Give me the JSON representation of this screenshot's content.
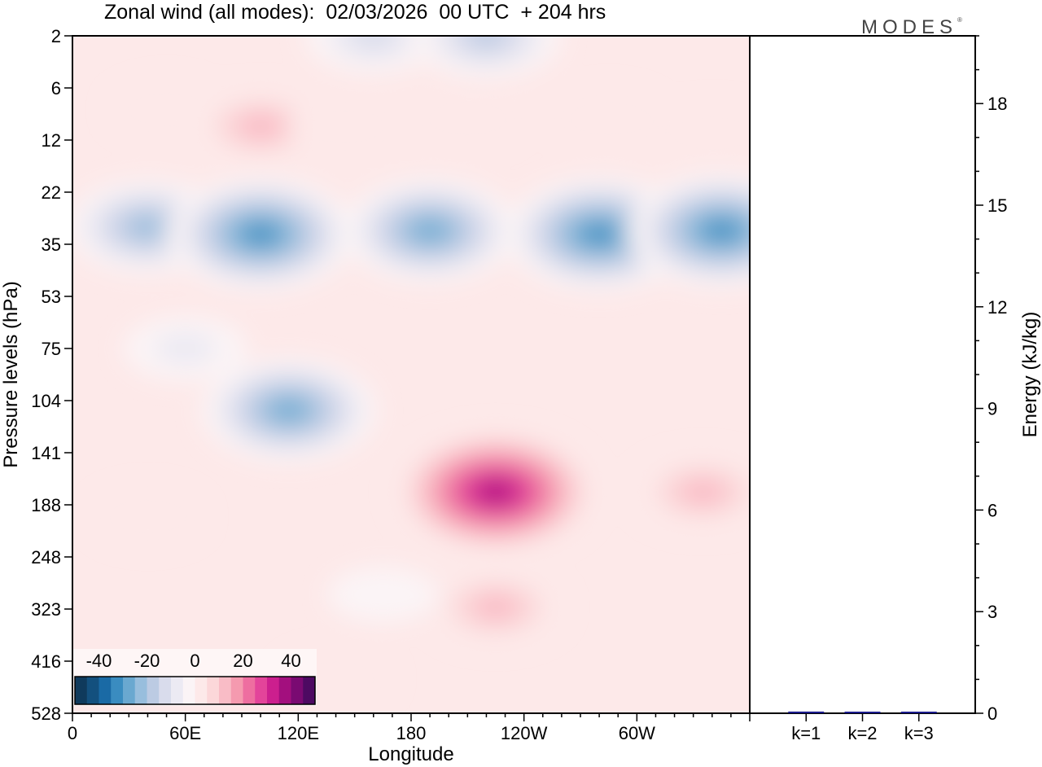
{
  "title": "Zonal wind (all modes):  02/03/2026  00 UTC  + 204 hrs",
  "brand": "MODES",
  "brand_mark": "®",
  "chart_data": [
    {
      "type": "heatmap",
      "title": "Zonal wind (all modes):  02/03/2026  00 UTC  + 204 hrs",
      "xlabel": "Longitude",
      "ylabel": "Pressure levels (hPa)",
      "x_ticks": [
        "0",
        "60E",
        "120E",
        "180",
        "120W",
        "60W"
      ],
      "x_tick_degrees": [
        0,
        60,
        120,
        180,
        240,
        300
      ],
      "x_range": [
        0,
        360
      ],
      "y_ticks": [
        "2",
        "6",
        "12",
        "22",
        "35",
        "53",
        "75",
        "104",
        "141",
        "188",
        "248",
        "323",
        "416",
        "528"
      ],
      "colorbar": {
        "labels": [
          "-40",
          "-20",
          "0",
          "20",
          "40"
        ],
        "levels": [
          -50,
          -45,
          -40,
          -35,
          -30,
          -25,
          -20,
          -15,
          -10,
          -5,
          0,
          5,
          10,
          15,
          20,
          25,
          30,
          35,
          40,
          45,
          50
        ],
        "colors": [
          "#0f3a5c",
          "#13507e",
          "#1a6aa5",
          "#3a8cc0",
          "#6aa8d0",
          "#98bedd",
          "#bccbe3",
          "#d9dcec",
          "#eceaf3",
          "#fbf4f6",
          "#fde9e9",
          "#fcd7d9",
          "#f9bcc6",
          "#f59aaf",
          "#ee6ea0",
          "#e3449a",
          "#cc1f8e",
          "#a30f7e",
          "#7a0a72",
          "#4d0a62"
        ]
      },
      "features": [
        {
          "lon": 50,
          "level": 8,
          "u": 5
        },
        {
          "lon": 100,
          "level": 10,
          "u": 15
        },
        {
          "lon": 145,
          "level": 10,
          "u": 5
        },
        {
          "lon": 210,
          "level": 9,
          "u": 5
        },
        {
          "lon": 285,
          "level": 9,
          "u": 5
        },
        {
          "lon": 340,
          "level": 11,
          "u": 5
        },
        {
          "lon": 160,
          "level": 2,
          "u": -15
        },
        {
          "lon": 220,
          "level": 2,
          "u": -20
        },
        {
          "lon": 40,
          "level": 30,
          "u": -25
        },
        {
          "lon": 100,
          "level": 32,
          "u": -35
        },
        {
          "lon": 190,
          "level": 31,
          "u": -30
        },
        {
          "lon": 280,
          "level": 32,
          "u": -35
        },
        {
          "lon": 345,
          "level": 31,
          "u": -35
        },
        {
          "lon": 115,
          "level": 110,
          "u": -30
        },
        {
          "lon": 60,
          "level": 75,
          "u": -10
        },
        {
          "lon": 225,
          "level": 175,
          "u": 40
        },
        {
          "lon": 225,
          "level": 320,
          "u": 15
        },
        {
          "lon": 335,
          "level": 175,
          "u": 15
        },
        {
          "lon": 40,
          "level": 200,
          "u": 5
        },
        {
          "lon": 165,
          "level": 300,
          "u": -5
        },
        {
          "lon": 140,
          "level": 450,
          "u": 5
        }
      ]
    },
    {
      "type": "bar",
      "categories": [
        "k=1",
        "k=2",
        "k=3"
      ],
      "values": [
        0.05,
        0.04,
        0.03
      ],
      "ylabel": "Energy (kJ/kg)",
      "ylim": [
        0,
        20
      ],
      "y_ticks": [
        "0",
        "3",
        "6",
        "9",
        "12",
        "15",
        "18"
      ],
      "y_tick_values": [
        0,
        3,
        6,
        9,
        12,
        15,
        18
      ],
      "bar_color": "#1a1a8c"
    }
  ]
}
